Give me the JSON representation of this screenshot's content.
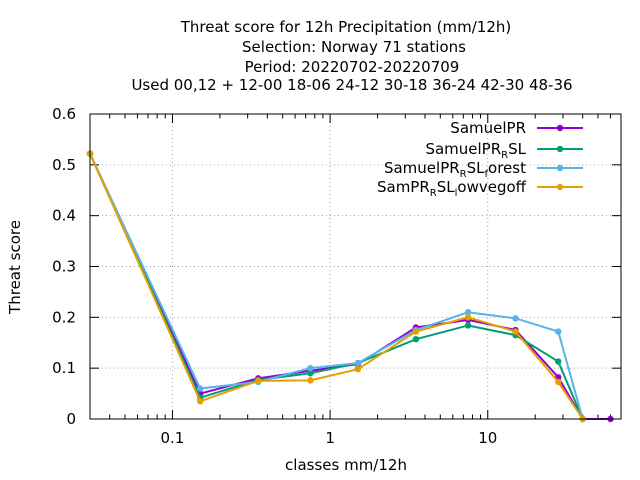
{
  "chart_data": {
    "type": "line",
    "title": [
      "Threat score  for 12h Precipitation (mm/12h)",
      "Selection: Norway     71 stations",
      "Period: 20220702-20220709",
      "Used  00,12  + 12-00 18-06 24-12 30-18 36-24 42-30 48-36"
    ],
    "xlabel": "classes mm/12h",
    "ylabel": "Threat score",
    "xscale": "log",
    "xlim": [
      0.03,
      70
    ],
    "ylim": [
      0,
      0.6
    ],
    "x_ticks": [
      {
        "value": 0.1,
        "label": "0.1"
      },
      {
        "value": 1,
        "label": "1"
      },
      {
        "value": 10,
        "label": "10"
      }
    ],
    "y_ticks": [
      {
        "value": 0,
        "label": "0"
      },
      {
        "value": 0.1,
        "label": "0.1"
      },
      {
        "value": 0.2,
        "label": "0.2"
      },
      {
        "value": 0.3,
        "label": "0.3"
      },
      {
        "value": 0.4,
        "label": "0.4"
      },
      {
        "value": 0.5,
        "label": "0.5"
      },
      {
        "value": 0.6,
        "label": "0.6"
      }
    ],
    "grid": true,
    "legend_position": "top-right",
    "x": [
      0.03,
      0.15,
      0.35,
      0.75,
      1.5,
      3.5,
      7.5,
      15,
      28,
      40,
      60
    ],
    "series": [
      {
        "name": "SamuelPR",
        "legend": {
          "base": "SamuelPR",
          "sub": "",
          "tail": "",
          "sub2": "",
          "tail2": ""
        },
        "color": "#9400d3",
        "values": [
          0.522,
          0.05,
          0.08,
          0.095,
          0.108,
          0.18,
          0.195,
          0.175,
          0.082,
          0.0,
          0.0
        ]
      },
      {
        "name": "SamuelPR_RSL",
        "legend": {
          "base": "SamuelPR",
          "sub": "R",
          "tail": "SL",
          "sub2": "",
          "tail2": ""
        },
        "color": "#009e73",
        "values": [
          0.522,
          0.042,
          0.077,
          0.09,
          0.11,
          0.157,
          0.184,
          0.165,
          0.113,
          0.0,
          null
        ]
      },
      {
        "name": "SamuelPR_RSL_forest",
        "legend": {
          "base": "SamuelPR",
          "sub": "R",
          "tail": "SL",
          "sub2": "f",
          "tail2": "orest"
        },
        "color": "#56b4e9",
        "values": [
          0.522,
          0.06,
          0.073,
          0.1,
          0.11,
          0.175,
          0.21,
          0.198,
          0.172,
          0.0,
          null
        ]
      },
      {
        "name": "SamPR_RSL_lowvegoff",
        "legend": {
          "base": "SamPR",
          "sub": "R",
          "tail": "SL",
          "sub2": "l",
          "tail2": "owvegoff"
        },
        "color": "#e69f00",
        "values": [
          0.522,
          0.035,
          0.075,
          0.076,
          0.098,
          0.172,
          0.2,
          0.172,
          0.073,
          0.0,
          null
        ]
      }
    ]
  }
}
